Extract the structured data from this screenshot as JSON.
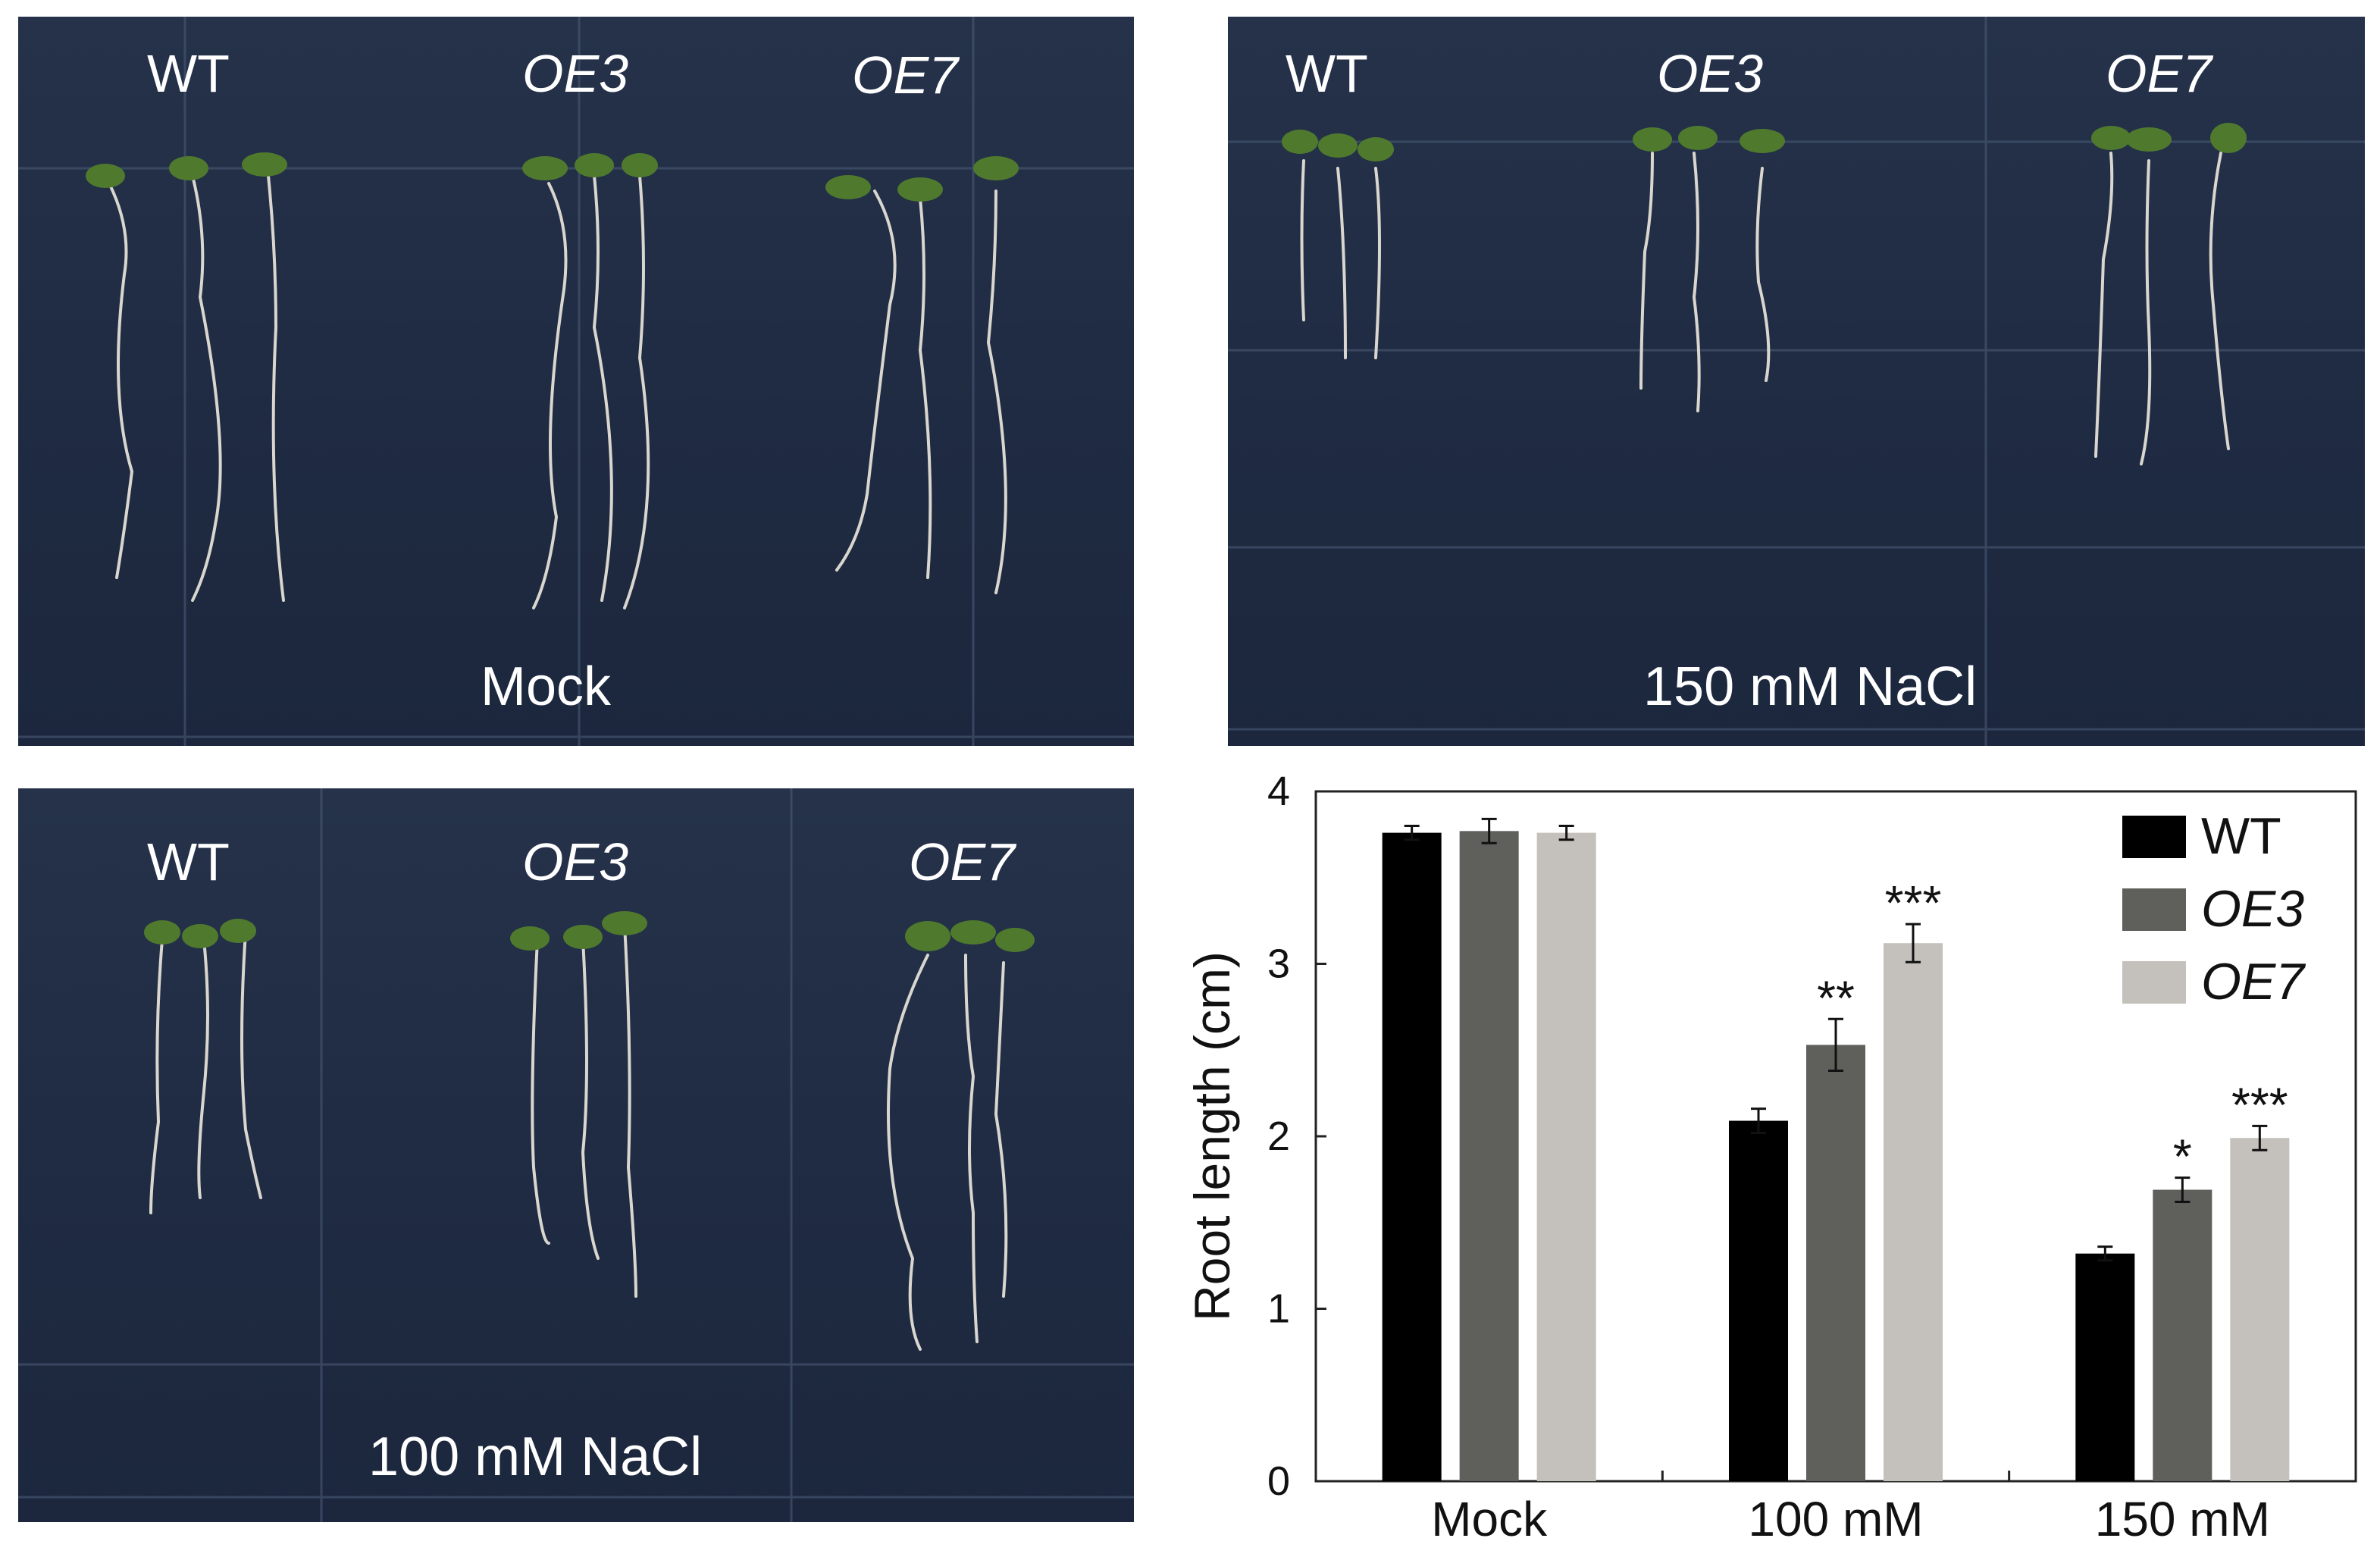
{
  "panels": {
    "mock": {
      "labels": [
        "WT",
        "OE3",
        "OE7"
      ],
      "condition": "Mock"
    },
    "nacl150": {
      "labels": [
        "WT",
        "OE3",
        "OE7"
      ],
      "condition": "150 mM NaCl"
    },
    "nacl100": {
      "labels": [
        "WT",
        "OE3",
        "OE7"
      ],
      "condition": "100 mM NaCl"
    }
  },
  "colors": {
    "plate_bg": "#22304a",
    "wt": "#000000",
    "oe3": "#5f5f5b",
    "oe7": "#c4c1bc"
  },
  "chart_data": {
    "type": "bar",
    "categories": [
      "Mock",
      "100 mM",
      "150 mM"
    ],
    "ylabel": "Root length (cm)",
    "ylim": [
      0,
      4
    ],
    "yticks": [
      0,
      1,
      2,
      3,
      4
    ],
    "legend": "top-right",
    "series": [
      {
        "name": "WT",
        "values": [
          3.76,
          2.09,
          1.32
        ],
        "errors": [
          0.04,
          0.07,
          0.04
        ],
        "significance": [
          "",
          "",
          ""
        ]
      },
      {
        "name": "OE3",
        "values": [
          3.77,
          2.53,
          1.69
        ],
        "errors": [
          0.07,
          0.15,
          0.07
        ],
        "significance": [
          "",
          "**",
          "*"
        ]
      },
      {
        "name": "OE7",
        "values": [
          3.76,
          3.12,
          1.99
        ],
        "errors": [
          0.04,
          0.11,
          0.07
        ],
        "significance": [
          "",
          "***",
          "***"
        ]
      }
    ]
  }
}
